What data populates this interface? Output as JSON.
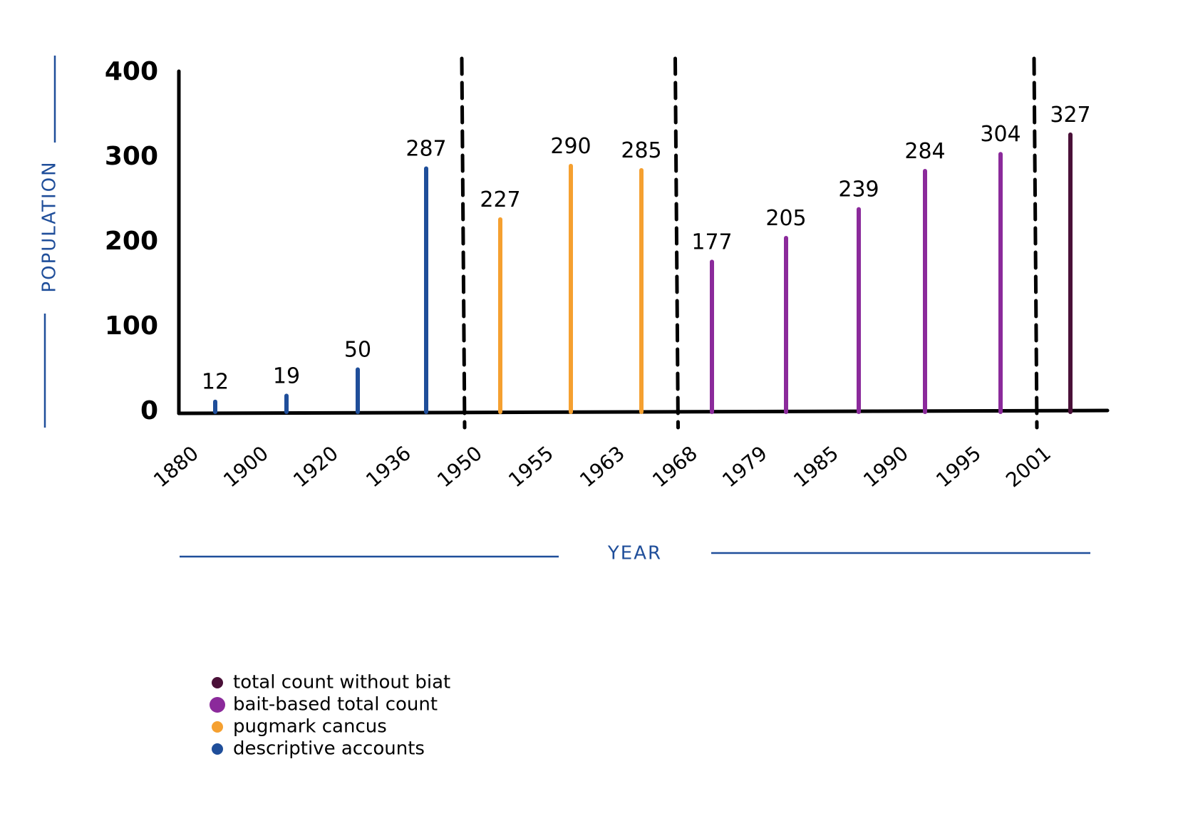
{
  "chart_data": {
    "type": "bar",
    "title": "",
    "xlabel": "YEAR",
    "ylabel": "POPULATION",
    "ylim": [
      0,
      400
    ],
    "y_ticks": [
      0,
      100,
      200,
      300,
      400
    ],
    "categories": [
      "1880",
      "1900",
      "1920",
      "1936",
      "1950",
      "1955",
      "1963",
      "1968",
      "1979",
      "1985",
      "1990",
      "1995",
      "2001"
    ],
    "values": [
      12,
      19,
      50,
      287,
      227,
      290,
      285,
      177,
      205,
      239,
      284,
      304,
      327
    ],
    "bar_methods": [
      "descriptive accounts",
      "descriptive accounts",
      "descriptive accounts",
      "descriptive accounts",
      "pugmark census",
      "pugmark census",
      "pugmark census",
      "bait-based total count",
      "bait-based total count",
      "bait-based total count",
      "bait-based total count",
      "bait-based total count",
      "total count without biat"
    ],
    "data_labels": [
      "12",
      "19",
      "50",
      "287",
      "227",
      "290",
      "285",
      "177",
      "205",
      "239",
      "284",
      "304",
      "327"
    ],
    "dividers_between": [
      [
        3,
        4
      ],
      [
        6,
        7
      ],
      [
        11,
        12
      ]
    ],
    "grid": false,
    "legend_placement": "bottom-left",
    "legend": [
      {
        "label": "total count without biat",
        "color": "#4a1038"
      },
      {
        "label": "bait-based total count",
        "color": "#8b2a9b"
      },
      {
        "label": "pugmark cancus",
        "color": "#f5a030"
      },
      {
        "label": "descriptive accounts",
        "color": "#1f4e9a"
      }
    ],
    "colors": {
      "descriptive accounts": "#1f4e9a",
      "pugmark census": "#f5a030",
      "bait-based total count": "#8b2a9b",
      "total count without biat": "#4a1038"
    }
  }
}
